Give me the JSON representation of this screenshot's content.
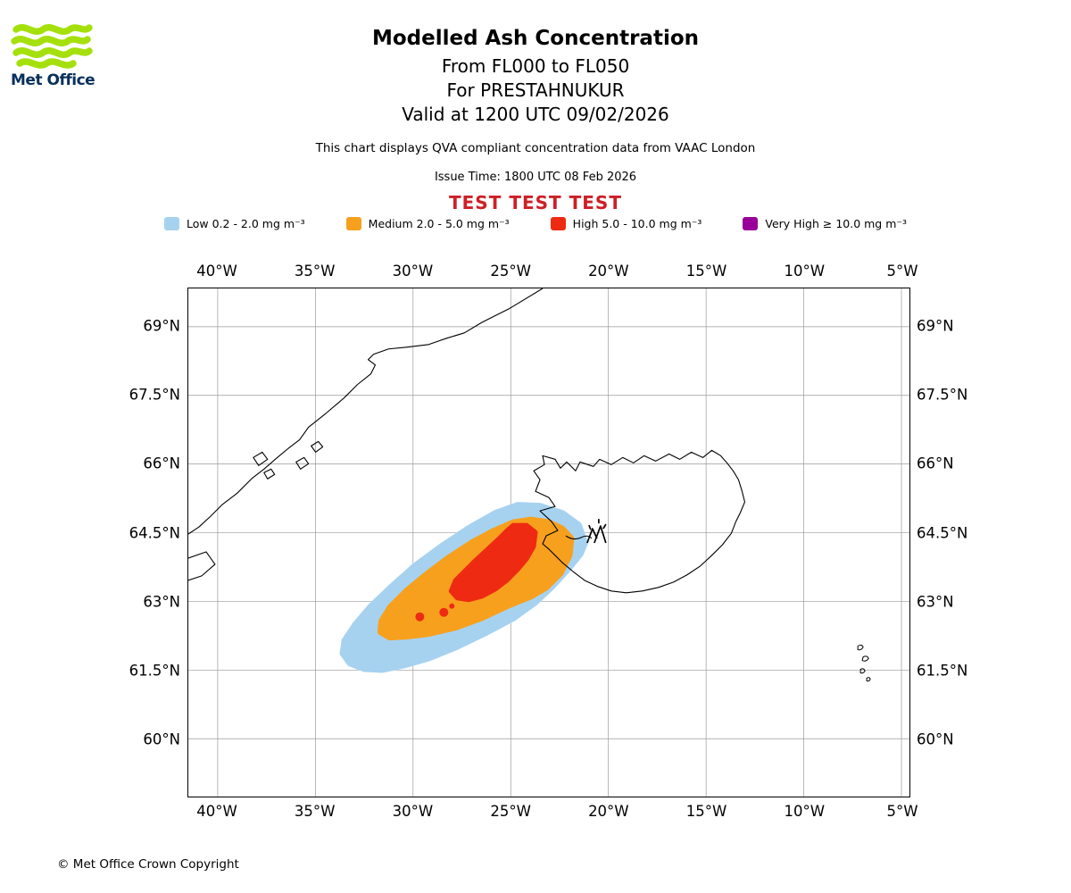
{
  "header": {
    "logo_text": "Met Office",
    "title": "Modelled Ash Concentration",
    "flight_levels": "From FL000 to FL050",
    "volcano_line": "For PRESTAHNUKUR",
    "valid_time": "Valid at 1200 UTC 09/02/2026",
    "description": "This chart displays QVA compliant concentration data from VAAC London",
    "issue_time": "Issue Time: 1800 UTC 08 Feb 2026",
    "test_banner": "TEST TEST TEST"
  },
  "colors": {
    "logo_green": "#A5E00D",
    "logo_navy": "#08305C",
    "test_red": "#CD2026",
    "coastline": "#000000",
    "grid": "#9A9A9A"
  },
  "legend": {
    "items": [
      {
        "name": "low",
        "label": "Low 0.2 - 2.0 mg m⁻³",
        "color": "#A6D2F0"
      },
      {
        "name": "medium",
        "label": "Medium 2.0 - 5.0 mg m⁻³",
        "color": "#F7A01E"
      },
      {
        "name": "high",
        "label": "High 5.0 - 10.0 mg m⁻³",
        "color": "#EE2B12"
      },
      {
        "name": "very-high",
        "label": "Very High ≥ 10.0 mg m⁻³",
        "color": "#990099"
      }
    ]
  },
  "map": {
    "lon_labels": [
      "40°W",
      "35°W",
      "30°W",
      "25°W",
      "20°W",
      "15°W",
      "10°W",
      "5°W"
    ],
    "lat_labels": [
      "69°N",
      "67.5°N",
      "66°N",
      "64.5°N",
      "63°N",
      "61.5°N",
      "60°N"
    ]
  },
  "footer": {
    "copyright": "© Met Office Crown Copyright"
  }
}
